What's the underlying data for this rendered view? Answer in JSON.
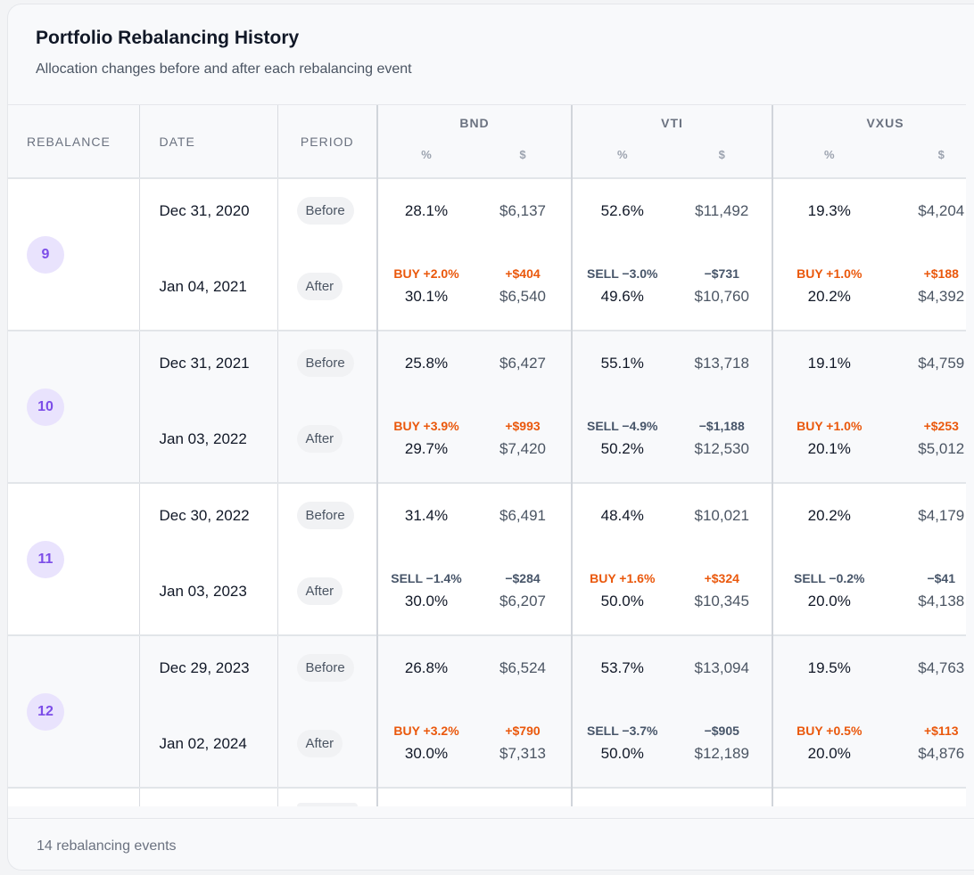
{
  "header": {
    "title": "Portfolio Rebalancing History",
    "subtitle": "Allocation changes before and after each rebalancing event"
  },
  "columns": {
    "rebalance": "REBALANCE",
    "date": "DATE",
    "period": "PERIOD",
    "pct": "%",
    "usd": "$"
  },
  "assets": [
    "BND",
    "VTI",
    "VXUS"
  ],
  "colors": {
    "buy": "#ea580c",
    "sell": "#475569",
    "badge_bg": "#e9e3fd",
    "badge_text": "#7c4de8"
  },
  "events": [
    {
      "n": "9",
      "before": {
        "date": "Dec 31, 2020",
        "label": "Before",
        "vals": [
          [
            "28.1%",
            "$6,137"
          ],
          [
            "52.6%",
            "$11,492"
          ],
          [
            "19.3%",
            "$4,204"
          ]
        ]
      },
      "after": {
        "date": "Jan 04, 2021",
        "label": "After",
        "vals": [
          [
            "30.1%",
            "$6,540"
          ],
          [
            "49.6%",
            "$10,760"
          ],
          [
            "20.2%",
            "$4,392"
          ]
        ]
      },
      "actions": [
        [
          "BUY +2.0%",
          "+$404",
          "buy"
        ],
        [
          "SELL −3.0%",
          "−$731",
          "sell"
        ],
        [
          "BUY +1.0%",
          "+$188",
          "buy"
        ]
      ]
    },
    {
      "n": "10",
      "before": {
        "date": "Dec 31, 2021",
        "label": "Before",
        "vals": [
          [
            "25.8%",
            "$6,427"
          ],
          [
            "55.1%",
            "$13,718"
          ],
          [
            "19.1%",
            "$4,759"
          ]
        ]
      },
      "after": {
        "date": "Jan 03, 2022",
        "label": "After",
        "vals": [
          [
            "29.7%",
            "$7,420"
          ],
          [
            "50.2%",
            "$12,530"
          ],
          [
            "20.1%",
            "$5,012"
          ]
        ]
      },
      "actions": [
        [
          "BUY +3.9%",
          "+$993",
          "buy"
        ],
        [
          "SELL −4.9%",
          "−$1,188",
          "sell"
        ],
        [
          "BUY +1.0%",
          "+$253",
          "buy"
        ]
      ]
    },
    {
      "n": "11",
      "before": {
        "date": "Dec 30, 2022",
        "label": "Before",
        "vals": [
          [
            "31.4%",
            "$6,491"
          ],
          [
            "48.4%",
            "$10,021"
          ],
          [
            "20.2%",
            "$4,179"
          ]
        ]
      },
      "after": {
        "date": "Jan 03, 2023",
        "label": "After",
        "vals": [
          [
            "30.0%",
            "$6,207"
          ],
          [
            "50.0%",
            "$10,345"
          ],
          [
            "20.0%",
            "$4,138"
          ]
        ]
      },
      "actions": [
        [
          "SELL −1.4%",
          "−$284",
          "sell"
        ],
        [
          "BUY +1.6%",
          "+$324",
          "buy"
        ],
        [
          "SELL −0.2%",
          "−$41",
          "sell"
        ]
      ]
    },
    {
      "n": "12",
      "before": {
        "date": "Dec 29, 2023",
        "label": "Before",
        "vals": [
          [
            "26.8%",
            "$6,524"
          ],
          [
            "53.7%",
            "$13,094"
          ],
          [
            "19.5%",
            "$4,763"
          ]
        ]
      },
      "after": {
        "date": "Jan 02, 2024",
        "label": "After",
        "vals": [
          [
            "30.0%",
            "$7,313"
          ],
          [
            "50.0%",
            "$12,189"
          ],
          [
            "20.0%",
            "$4,876"
          ]
        ]
      },
      "actions": [
        [
          "BUY +3.2%",
          "+$790",
          "buy"
        ],
        [
          "SELL −3.7%",
          "−$905",
          "sell"
        ],
        [
          "BUY +0.5%",
          "+$113",
          "buy"
        ]
      ]
    }
  ],
  "footer": {
    "count_text": "14 rebalancing events"
  }
}
